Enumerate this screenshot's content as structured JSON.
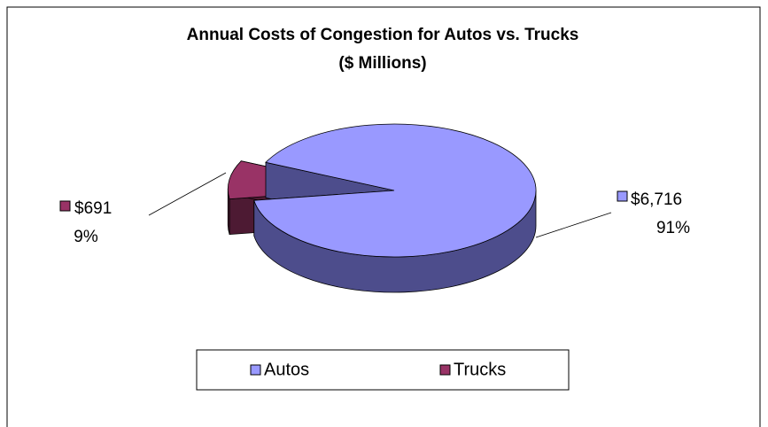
{
  "chart_data": {
    "type": "pie",
    "title": [
      "Annual Costs of Congestion for Autos vs. Trucks",
      "($ Millions)"
    ],
    "categories": [
      "Autos",
      "Trucks"
    ],
    "values": [
      6716,
      691
    ],
    "value_labels": [
      "$6,716",
      "$691"
    ],
    "percent_labels": [
      "91%",
      "9%"
    ],
    "colors": [
      "#9999ff",
      "#993366"
    ],
    "side_colors": [
      "#4d4d8c",
      "#4d1a33"
    ],
    "legend": "bottom"
  }
}
